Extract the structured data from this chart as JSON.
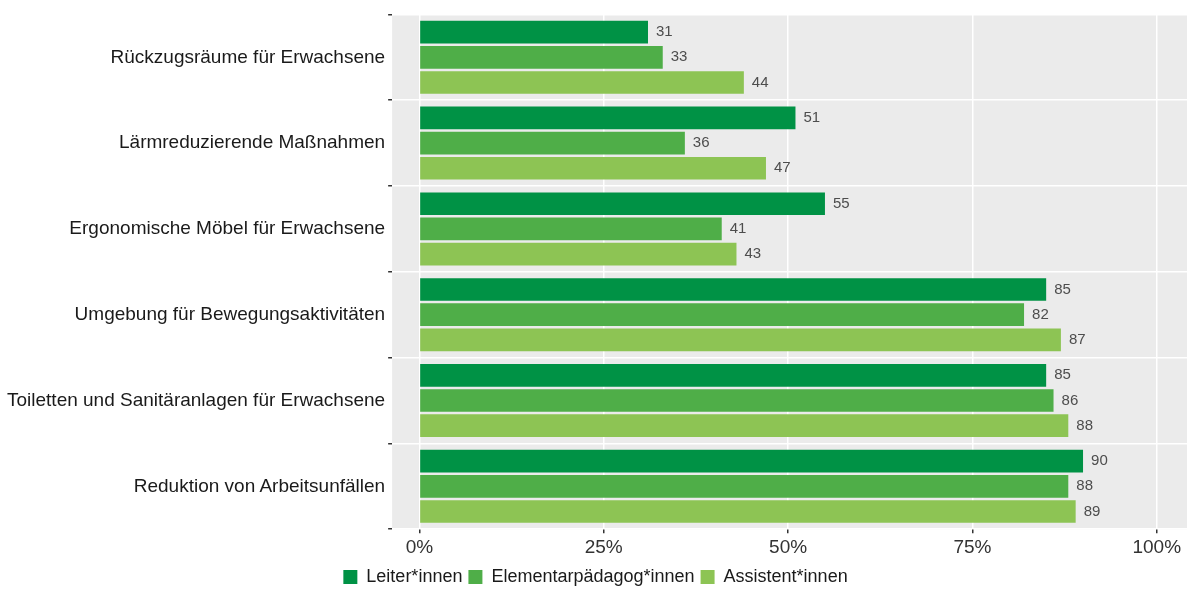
{
  "chart_data": {
    "type": "bar",
    "orientation": "horizontal",
    "categories": [
      "Rückzugsräume für Erwachsene",
      "Lärmreduzierende Maßnahmen",
      "Ergonomische Möbel für Erwachsene",
      "Umgebung für Bewegungsaktivitäten",
      "Toiletten und Sanitäranlagen für Erwachsene",
      "Reduktion von Arbeitsunfällen"
    ],
    "series": [
      {
        "name": "Leiter*innen",
        "color": "#009245",
        "values": [
          31,
          51,
          55,
          85,
          85,
          90
        ]
      },
      {
        "name": "Elementarpädagog*innen",
        "color": "#4fae48",
        "values": [
          33,
          36,
          41,
          82,
          86,
          88
        ]
      },
      {
        "name": "Assistent*innen",
        "color": "#8dc454",
        "values": [
          44,
          47,
          43,
          87,
          88,
          89
        ]
      }
    ],
    "xlim": [
      -3.7,
      104.1
    ],
    "xticks": [
      {
        "value": 0,
        "label": "0%"
      },
      {
        "value": 25,
        "label": "25%"
      },
      {
        "value": 50,
        "label": "50%"
      },
      {
        "value": 75,
        "label": "75%"
      },
      {
        "value": 100,
        "label": "100%"
      }
    ],
    "grid": true,
    "legend": "bottom",
    "data_labels": true
  }
}
